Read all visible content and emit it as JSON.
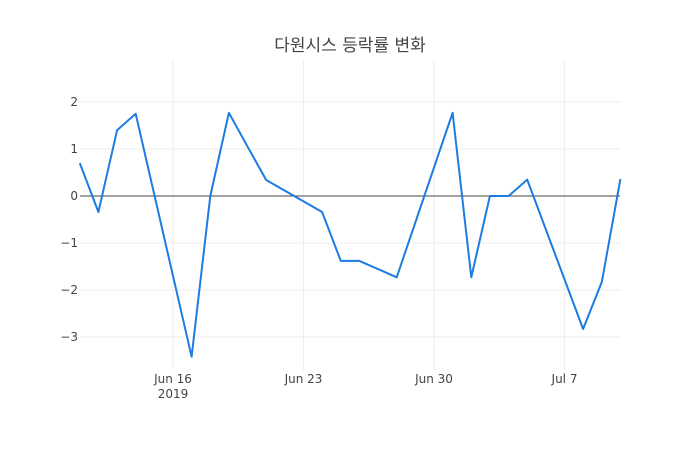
{
  "chart_data": {
    "type": "line",
    "title": "다원시스 등락률 변화",
    "xlabel": "",
    "ylabel": "",
    "x": [
      "2019-06-11",
      "2019-06-12",
      "2019-06-13",
      "2019-06-14",
      "2019-06-17",
      "2019-06-18",
      "2019-06-19",
      "2019-06-20",
      "2019-06-21",
      "2019-06-24",
      "2019-06-25",
      "2019-06-26",
      "2019-06-28",
      "2019-07-01",
      "2019-07-02",
      "2019-07-03",
      "2019-07-04",
      "2019-07-05",
      "2019-07-08",
      "2019-07-09",
      "2019-07-10"
    ],
    "series": [
      {
        "name": "등락률",
        "color": "#1c7ce0",
        "values": [
          0.7,
          -0.34,
          1.4,
          1.75,
          -3.42,
          0.0,
          1.77,
          1.05,
          0.34,
          -0.34,
          -1.38,
          -1.38,
          -1.73,
          1.77,
          -1.73,
          0.0,
          0.0,
          0.35,
          -2.83,
          -1.83,
          0.36
        ]
      }
    ],
    "x_ticks": [
      {
        "label": "Jun 16",
        "sub": "2019",
        "date": "2019-06-16"
      },
      {
        "label": "Jun 23",
        "sub": "",
        "date": "2019-06-23"
      },
      {
        "label": "Jun 30",
        "sub": "",
        "date": "2019-06-30"
      },
      {
        "label": "Jul 7",
        "sub": "",
        "date": "2019-07-07"
      }
    ],
    "y_ticks": [
      2,
      1,
      0,
      -1,
      -2,
      -3
    ],
    "y_tick_labels": [
      "2",
      "1",
      "0",
      "−1",
      "−2",
      "−3"
    ],
    "ylim": [
      -3.6,
      2.2
    ],
    "xlim": [
      "2019-06-11",
      "2019-07-10"
    ],
    "grid": true,
    "zero_line": true,
    "legend": null
  }
}
